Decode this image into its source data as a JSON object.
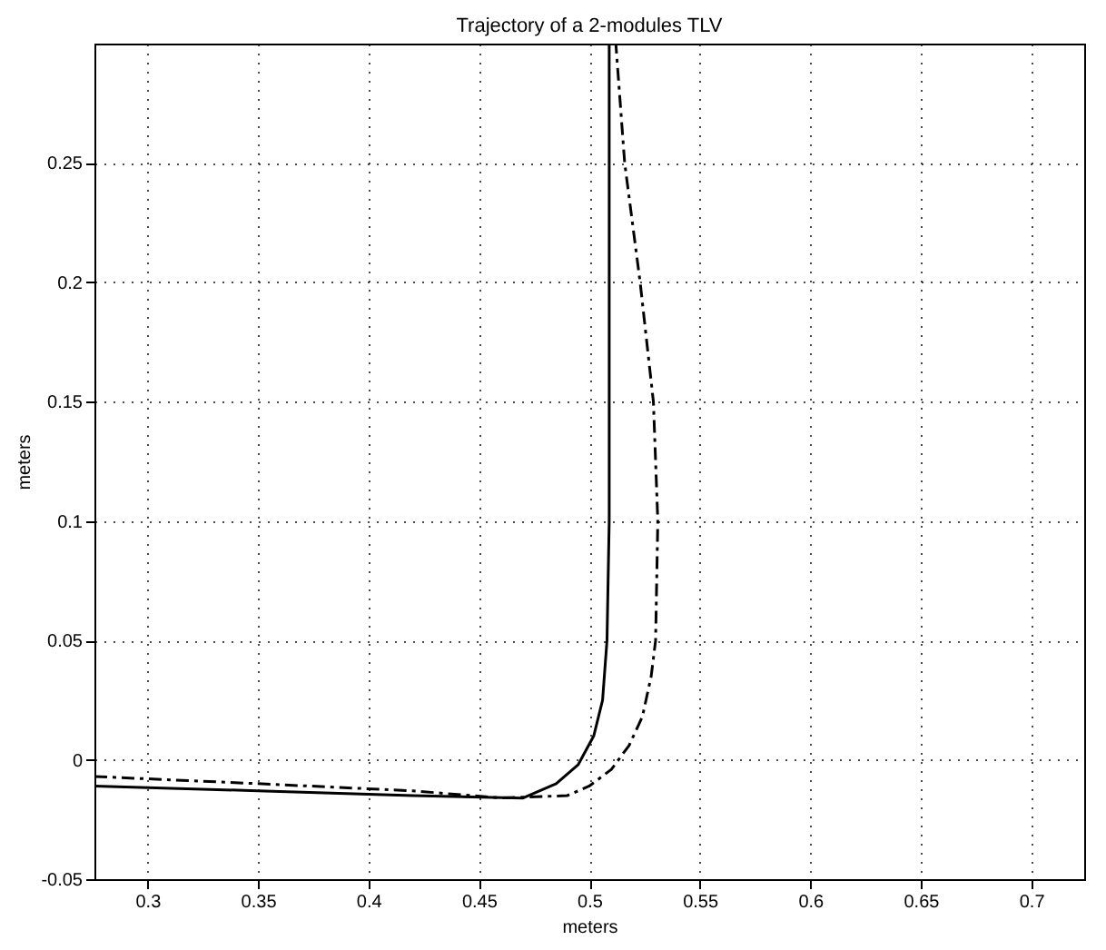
{
  "chart_data": {
    "type": "line",
    "title": "Trajectory of a 2-modules TLV",
    "xlabel": "meters",
    "ylabel": "meters",
    "xlim": [
      0.276,
      0.724
    ],
    "ylim": [
      -0.05,
      0.3
    ],
    "xticks": [
      {
        "value": 0.3,
        "label": "0.3"
      },
      {
        "value": 0.35,
        "label": "0.35"
      },
      {
        "value": 0.4,
        "label": "0.4"
      },
      {
        "value": 0.45,
        "label": "0.45"
      },
      {
        "value": 0.5,
        "label": "0.5"
      },
      {
        "value": 0.55,
        "label": "0.55"
      },
      {
        "value": 0.6,
        "label": "0.6"
      },
      {
        "value": 0.65,
        "label": "0.65"
      },
      {
        "value": 0.7,
        "label": "0.7"
      }
    ],
    "yticks": [
      {
        "value": -0.05,
        "label": "-0.05"
      },
      {
        "value": 0,
        "label": "0"
      },
      {
        "value": 0.05,
        "label": "0.05"
      },
      {
        "value": 0.1,
        "label": "0.1"
      },
      {
        "value": 0.15,
        "label": "0.15"
      },
      {
        "value": 0.2,
        "label": "0.2"
      },
      {
        "value": 0.25,
        "label": "0.25"
      }
    ],
    "grid": true,
    "marker": "none",
    "series": [
      {
        "color": "#000000",
        "line_style": "solid",
        "x": [
          0.276,
          0.35,
          0.42,
          0.47,
          0.485,
          0.495,
          0.502,
          0.506,
          0.508,
          0.509,
          0.509,
          0.509
        ],
        "values": [
          -0.011,
          -0.013,
          -0.015,
          -0.016,
          -0.01,
          -0.002,
          0.01,
          0.025,
          0.05,
          0.1,
          0.2,
          0.3
        ]
      },
      {
        "color": "#000000",
        "line_style": "dashed",
        "x": [
          0.276,
          0.35,
          0.42,
          0.46,
          0.49,
          0.5,
          0.51,
          0.518,
          0.524,
          0.528,
          0.53,
          0.531,
          0.529,
          0.523,
          0.516,
          0.512
        ],
        "values": [
          -0.007,
          -0.01,
          -0.013,
          -0.016,
          -0.015,
          -0.011,
          -0.004,
          0.006,
          0.018,
          0.035,
          0.05,
          0.1,
          0.15,
          0.2,
          0.25,
          0.3
        ]
      }
    ]
  }
}
